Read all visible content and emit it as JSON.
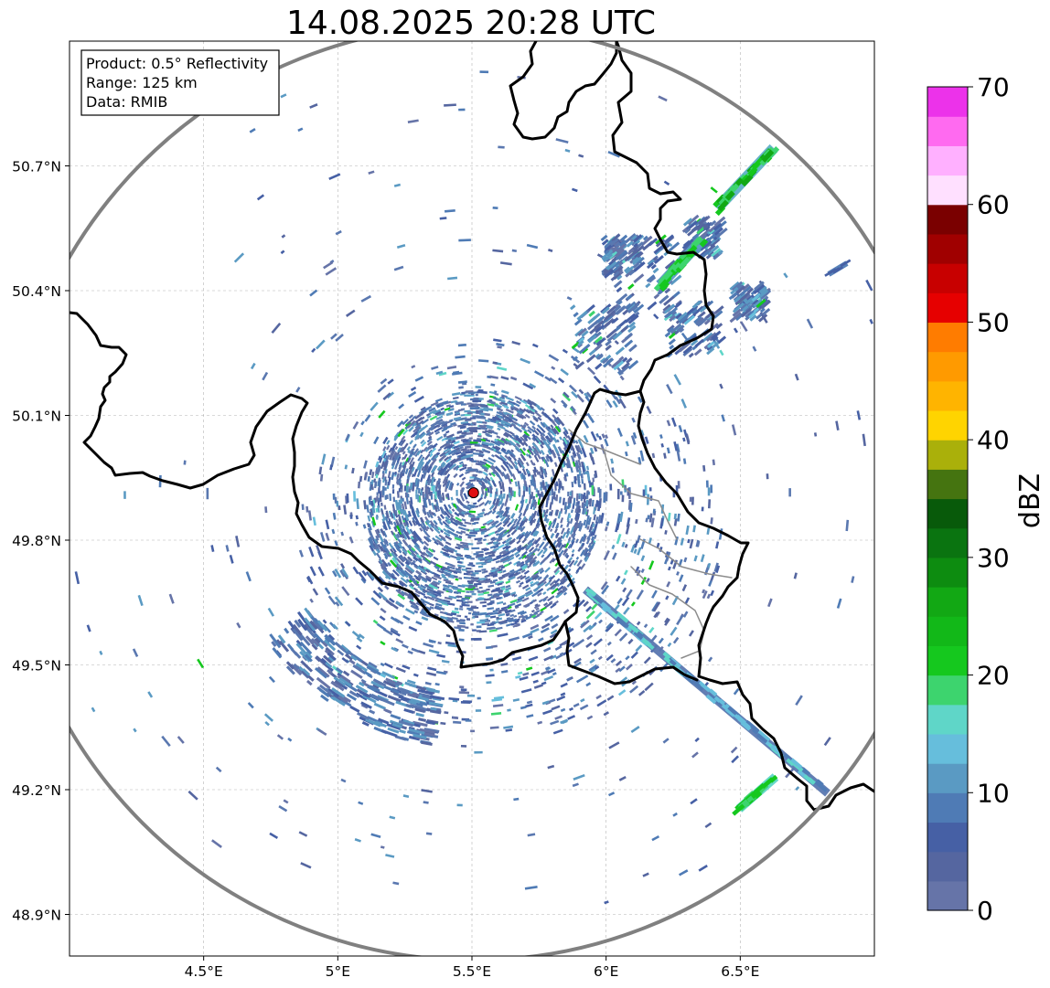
{
  "title": "14.08.2025 20:28 UTC",
  "info_box": {
    "product": "Product: 0.5° Reflectivity",
    "range": "Range: 125 km",
    "data": "Data: RMIB"
  },
  "map": {
    "lon_range": [
      4.0,
      7.0
    ],
    "lat_range": [
      48.8,
      51.0
    ],
    "lon_ticks": [
      {
        "value": 4.5,
        "label": "4.5°E"
      },
      {
        "value": 5.0,
        "label": "5°E"
      },
      {
        "value": 5.5,
        "label": "5.5°E"
      },
      {
        "value": 6.0,
        "label": "6°E"
      },
      {
        "value": 6.5,
        "label": "6.5°E"
      }
    ],
    "lat_ticks": [
      {
        "value": 48.9,
        "label": "48.9°N"
      },
      {
        "value": 49.2,
        "label": "49.2°N"
      },
      {
        "value": 49.5,
        "label": "49.5°N"
      },
      {
        "value": 49.8,
        "label": "49.8°N"
      },
      {
        "value": 50.1,
        "label": "50.1°N"
      },
      {
        "value": 50.4,
        "label": "50.4°N"
      },
      {
        "value": 50.7,
        "label": "50.7°N"
      }
    ],
    "radar_site": {
      "lon": 5.506,
      "lat": 49.914
    },
    "range_ring_km": 125,
    "grid": true
  },
  "colorbar": {
    "label": "dBZ",
    "min": 0,
    "max": 70,
    "ticks": [
      0,
      10,
      20,
      30,
      40,
      50,
      60,
      70
    ],
    "colors": [
      "#6674a8",
      "#5566a0",
      "#4660a5",
      "#4f7bb5",
      "#5a9ac3",
      "#66bedc",
      "#5fd6c8",
      "#3dd46e",
      "#15c81e",
      "#12b818",
      "#12a814",
      "#0d8c10",
      "#0a7410",
      "#085a0a",
      "#457410",
      "#aab00a",
      "#ffd400",
      "#ffb400",
      "#ff9a00",
      "#ff7c00",
      "#e60000",
      "#c80000",
      "#a00000",
      "#7a0000",
      "#ffe0ff",
      "#ffb0ff",
      "#ff6af0",
      "#ec32ea"
    ]
  },
  "colors": {
    "range_ring": "#808080",
    "border": "#000000",
    "sub_border": "#8c8c8c",
    "site_marker": "#e01010",
    "grid": "#b4b4b4"
  }
}
